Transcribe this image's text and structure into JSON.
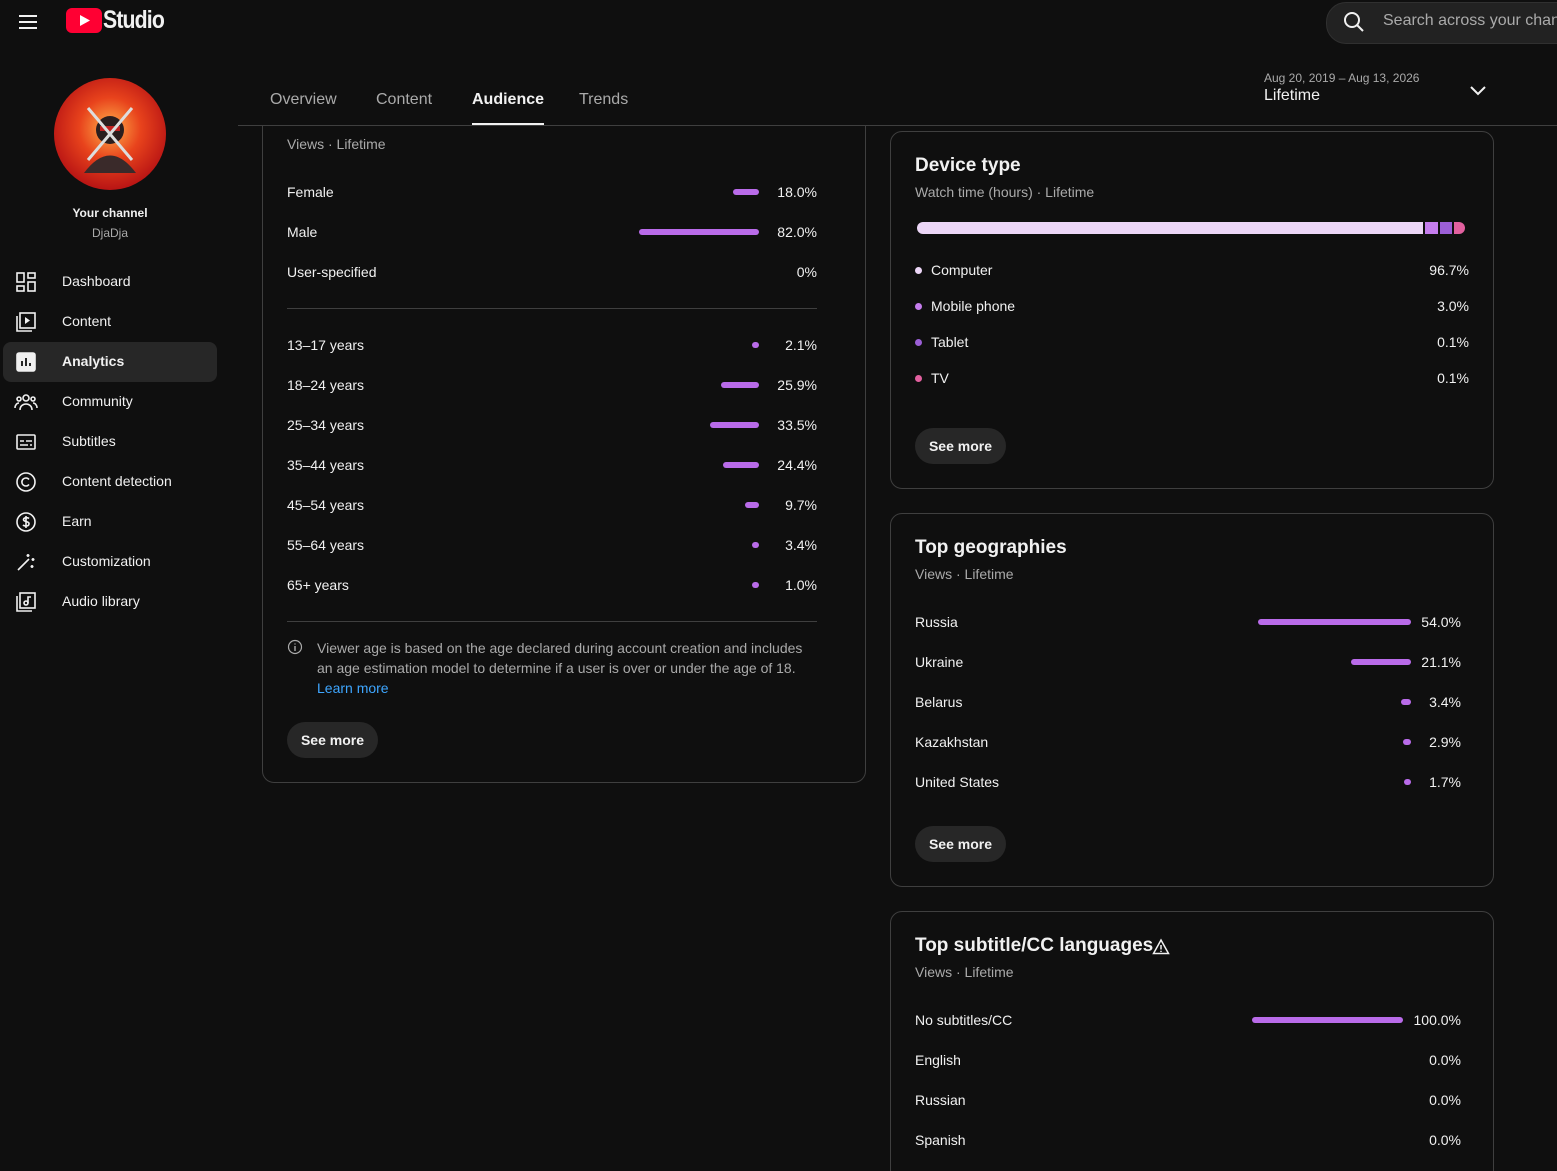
{
  "header": {
    "logo_text": "Studio",
    "search_placeholder": "Search across your chan"
  },
  "channel": {
    "label": "Your channel",
    "name": "DjaDja"
  },
  "nav": [
    {
      "label": "Dashboard",
      "selected": false
    },
    {
      "label": "Content",
      "selected": false
    },
    {
      "label": "Analytics",
      "selected": true
    },
    {
      "label": "Community",
      "selected": false
    },
    {
      "label": "Subtitles",
      "selected": false
    },
    {
      "label": "Content detection",
      "selected": false
    },
    {
      "label": "Earn",
      "selected": false
    },
    {
      "label": "Customization",
      "selected": false
    },
    {
      "label": "Audio library",
      "selected": false
    }
  ],
  "tabs": [
    {
      "label": "Overview",
      "selected": false
    },
    {
      "label": "Content",
      "selected": false
    },
    {
      "label": "Audience",
      "selected": true
    },
    {
      "label": "Trends",
      "selected": false
    }
  ],
  "date_range": {
    "range": "Aug 20, 2019 – Aug 13, 2026",
    "label": "Lifetime"
  },
  "age_gender": {
    "subtitle": "Views · Lifetime",
    "gender": [
      {
        "label": "Female",
        "value": 18.0,
        "value_label": "18.0%"
      },
      {
        "label": "Male",
        "value": 82.0,
        "value_label": "82.0%"
      },
      {
        "label": "User-specified",
        "value": 0,
        "value_label": "0%"
      }
    ],
    "age": [
      {
        "label": "13–17 years",
        "value": 2.1,
        "value_label": "2.1%"
      },
      {
        "label": "18–24 years",
        "value": 25.9,
        "value_label": "25.9%"
      },
      {
        "label": "25–34 years",
        "value": 33.5,
        "value_label": "33.5%"
      },
      {
        "label": "35–44 years",
        "value": 24.4,
        "value_label": "24.4%"
      },
      {
        "label": "45–54 years",
        "value": 9.7,
        "value_label": "9.7%"
      },
      {
        "label": "55–64 years",
        "value": 3.4,
        "value_label": "3.4%"
      },
      {
        "label": "65+ years",
        "value": 1.0,
        "value_label": "1.0%"
      }
    ],
    "note_line1": "Viewer age is based on the age declared during account creation and includes",
    "note_line2": "an age estimation model to determine if a user is over or under the age of 18.",
    "learn_more": "Learn more",
    "button": "See more"
  },
  "device": {
    "title": "Device type",
    "subtitle": "Watch time (hours) · Lifetime",
    "items": [
      {
        "label": "Computer",
        "value": 96.7,
        "value_label": "96.7%",
        "color": "#ecd6f7"
      },
      {
        "label": "Mobile phone",
        "value": 3.0,
        "value_label": "3.0%",
        "color": "#c57ded"
      },
      {
        "label": "Tablet",
        "value": 0.1,
        "value_label": "0.1%",
        "color": "#9b5fd6"
      },
      {
        "label": "TV",
        "value": 0.1,
        "value_label": "0.1%",
        "color": "#e2609f"
      }
    ],
    "button": "See more"
  },
  "geographies": {
    "title": "Top geographies",
    "subtitle": "Views · Lifetime",
    "rows": [
      {
        "label": "Russia",
        "value": 54.0,
        "value_label": "54.0%"
      },
      {
        "label": "Ukraine",
        "value": 21.1,
        "value_label": "21.1%"
      },
      {
        "label": "Belarus",
        "value": 3.4,
        "value_label": "3.4%"
      },
      {
        "label": "Kazakhstan",
        "value": 2.9,
        "value_label": "2.9%"
      },
      {
        "label": "United States",
        "value": 1.7,
        "value_label": "1.7%"
      }
    ],
    "button": "See more"
  },
  "subtitles": {
    "title": "Top subtitle/CC languages",
    "subtitle": "Views · Lifetime",
    "rows": [
      {
        "label": "No subtitles/CC",
        "value": 100.0,
        "value_label": "100.0%"
      },
      {
        "label": "English",
        "value": 0.0,
        "value_label": "0.0%"
      },
      {
        "label": "Russian",
        "value": 0.0,
        "value_label": "0.0%"
      },
      {
        "label": "Spanish",
        "value": 0.0,
        "value_label": "0.0%"
      }
    ]
  }
}
